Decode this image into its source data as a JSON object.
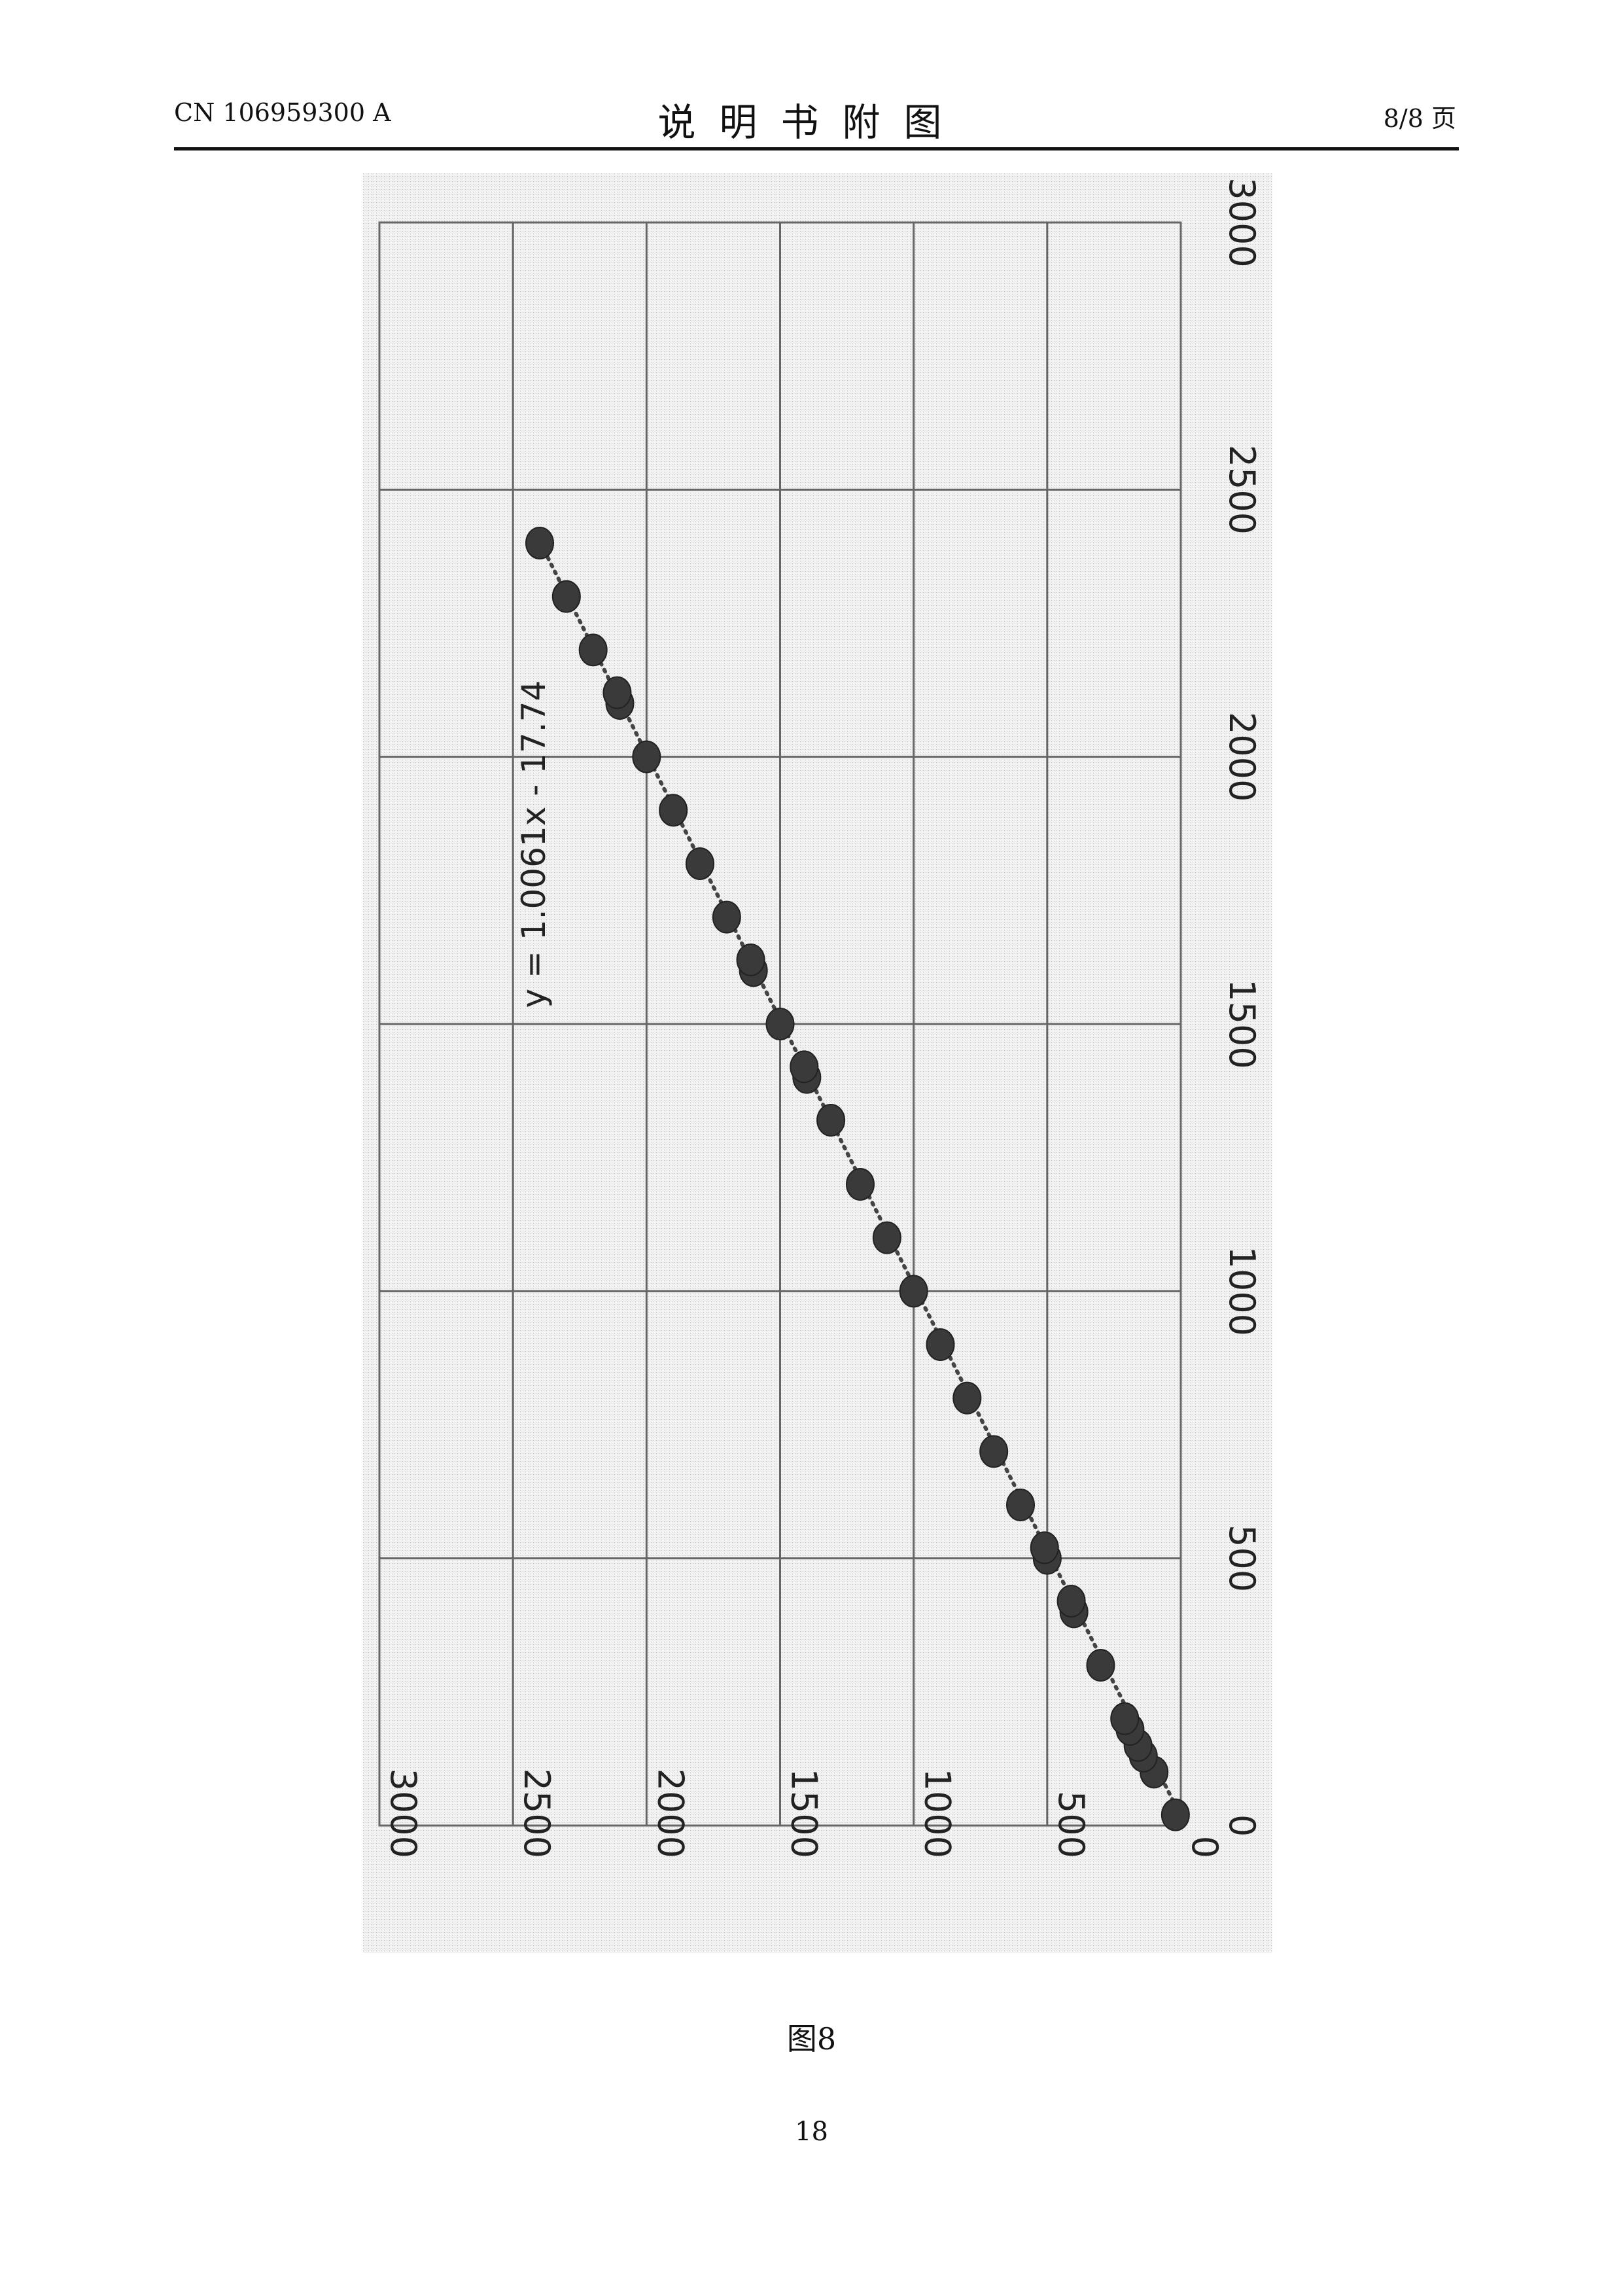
{
  "header": {
    "left": "CN 106959300 A",
    "center": "说明书附图",
    "right": "8/8 页"
  },
  "figure": {
    "caption": "图8",
    "page_number": "18"
  },
  "chart_data": {
    "type": "scatter",
    "rotated": "90° counter-clockwise",
    "title": "",
    "xlabel": "",
    "ylabel": "",
    "xlim": [
      0,
      3000
    ],
    "ylim": [
      0,
      3000
    ],
    "x_ticks": [
      0,
      500,
      1000,
      1500,
      2000,
      2500,
      3000
    ],
    "y_ticks": [
      0,
      500,
      1000,
      1500,
      2000,
      2500,
      3000
    ],
    "grid": true,
    "trendline": {
      "slope": 1.0061,
      "intercept": -17.74,
      "x_range": [
        20,
        2420
      ],
      "style": "dotted"
    },
    "trendline_label": "y = 1.0061x - 17.74",
    "series": [
      {
        "points": [
          [
            20,
            20
          ],
          [
            100,
            100
          ],
          [
            130,
            140
          ],
          [
            150,
            160
          ],
          [
            180,
            190
          ],
          [
            200,
            210
          ],
          [
            300,
            300
          ],
          [
            400,
            400
          ],
          [
            420,
            410
          ],
          [
            500,
            500
          ],
          [
            520,
            510
          ],
          [
            600,
            600
          ],
          [
            700,
            700
          ],
          [
            800,
            800
          ],
          [
            900,
            900
          ],
          [
            1000,
            1000
          ],
          [
            1100,
            1100
          ],
          [
            1200,
            1200
          ],
          [
            1320,
            1310
          ],
          [
            1400,
            1400
          ],
          [
            1420,
            1410
          ],
          [
            1500,
            1500
          ],
          [
            1600,
            1600
          ],
          [
            1620,
            1610
          ],
          [
            1700,
            1700
          ],
          [
            1800,
            1800
          ],
          [
            1900,
            1900
          ],
          [
            2000,
            2000
          ],
          [
            2100,
            2100
          ],
          [
            2120,
            2110
          ],
          [
            2200,
            2200
          ],
          [
            2300,
            2300
          ],
          [
            2400,
            2400
          ]
        ]
      }
    ]
  }
}
